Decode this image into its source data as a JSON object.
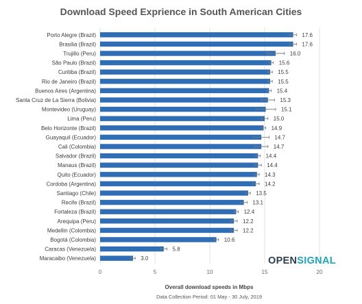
{
  "chart_data": {
    "type": "bar",
    "orientation": "horizontal",
    "title": "Download Speed Exprience in South American Cities",
    "xlabel": "Overall download speeds in Mbps",
    "note": "Data Collection Period: 01 May - 30 July, 2019",
    "xlim": [
      0,
      20
    ],
    "xticks": [
      "0",
      "5",
      "10",
      "15",
      "20"
    ],
    "categories": [
      "Porto Alegre (Brazil)",
      "Brasilia (Brazil)",
      "Trujillo (Peru)",
      "São Paulo (Brazil)",
      "Curitiba (Brazil)",
      "Rio de Janeiro (Brazil)",
      "Buenos Aires (Argentina)",
      "Santa Cruz de La Sierra (Bolivia)",
      "Montevideo (Uruguay)",
      "Lima (Peru)",
      "Belo Horizonte (Brazil)",
      "Guayaquil (Ecuador)",
      "Cali (Colombia)",
      "Salvador (Brazil)",
      "Manaus (Brazil)",
      "Quito (Ecuador)",
      "Cordoba (Argentina)",
      "Santiago (Chile)",
      "Recife (Brazil)",
      "Fortaleza (Brazil)",
      "Arequipa (Peru)",
      "Medellin (Colombia)",
      "Bogotá (Colombia)",
      "Caracas (Venezuela)",
      "Maracaibo (Venezuela)"
    ],
    "values": [
      17.6,
      17.6,
      16.0,
      15.6,
      15.5,
      15.5,
      15.4,
      15.3,
      15.1,
      15.0,
      14.9,
      14.7,
      14.7,
      14.4,
      14.4,
      14.3,
      14.2,
      13.5,
      13.1,
      12.4,
      12.2,
      12.2,
      10.6,
      5.8,
      3.0
    ],
    "value_labels": [
      "17.6",
      "17.6",
      "16.0",
      "15.6",
      "15.5",
      "15.5",
      "15.4",
      "15.3",
      "15.1",
      "15.0",
      "14.9",
      "14.7",
      "14.7",
      "14.4",
      "14.4",
      "14.3",
      "14.2",
      "13.5",
      "13.1",
      "12.4",
      "12.2",
      "12.2",
      "10.6",
      "5.8",
      "3.0"
    ],
    "error_margin": [
      0.3,
      0.3,
      0.8,
      0.2,
      0.2,
      0.2,
      0.2,
      0.6,
      0.9,
      0.3,
      0.2,
      0.7,
      0.6,
      0.2,
      0.3,
      0.2,
      0.3,
      0.2,
      0.3,
      0.2,
      0.3,
      0.3,
      0.2,
      0.3,
      0.2
    ],
    "bar_color": "#2f6db5",
    "grid": true
  },
  "branding": {
    "logo_text_a": "OPEN",
    "logo_text_b": "SIGNAL",
    "logo_accent": "#1fa5b8"
  }
}
